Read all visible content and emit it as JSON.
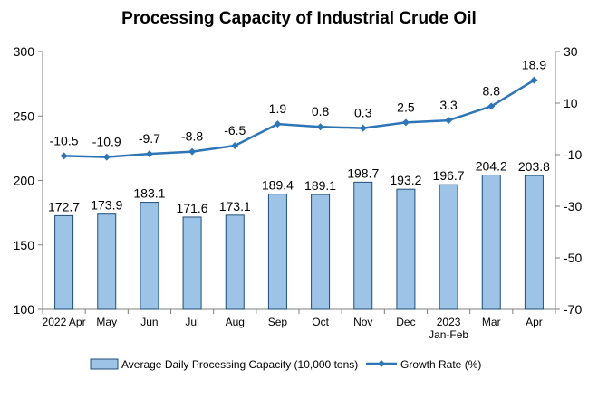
{
  "chart_data": {
    "type": "bar",
    "title": "Processing Capacity of Industrial Crude Oil",
    "categories": [
      "2022 Apr",
      "May",
      "Jun",
      "Jul",
      "Aug",
      "Sep",
      "Oct",
      "Nov",
      "Dec",
      "2023 Jan-Feb",
      "Mar",
      "Apr"
    ],
    "series": [
      {
        "name": "Average Daily Processing Capacity (10,000 tons)",
        "type": "bar",
        "axis": "left",
        "color": "#9DC3E6",
        "edge_color": "#1F4E79",
        "values": [
          172.7,
          173.9,
          183.1,
          171.6,
          173.1,
          189.4,
          189.1,
          198.7,
          193.2,
          196.7,
          204.2,
          203.8
        ],
        "labels": [
          "172.7",
          "173.9",
          "183.1",
          "171.6",
          "173.1",
          "189.4",
          "189.1",
          "198.7",
          "193.2",
          "196.7",
          "204.2",
          "203.8"
        ]
      },
      {
        "name": "Growth Rate (%)",
        "type": "line",
        "axis": "right",
        "color": "#2E75B6",
        "marker": "diamond",
        "values": [
          -10.5,
          -10.9,
          -9.7,
          -8.8,
          -6.5,
          1.9,
          0.8,
          0.3,
          2.5,
          3.3,
          8.8,
          18.9
        ],
        "labels": [
          "-10.5",
          "-10.9",
          "-9.7",
          "-8.8",
          "-6.5",
          "1.9",
          "0.8",
          "0.3",
          "2.5",
          "3.3",
          "8.8",
          "18.9"
        ]
      }
    ],
    "y_left": {
      "min": 100,
      "max": 300,
      "ticks": [
        "100",
        "150",
        "200",
        "250",
        "300"
      ]
    },
    "y_right": {
      "min": -70,
      "max": 30,
      "ticks": [
        "-70",
        "-50",
        "-30",
        "-10",
        "10",
        "30"
      ]
    },
    "grid": false,
    "legend_position": "bottom"
  }
}
